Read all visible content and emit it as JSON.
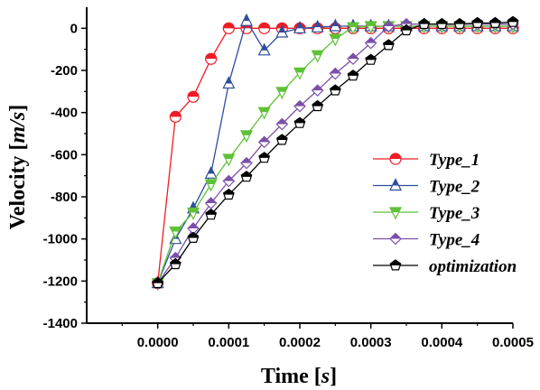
{
  "chart_data": {
    "type": "line",
    "xlabel": {
      "main": "Time ",
      "unit": "s"
    },
    "ylabel": {
      "main": "Velocity ",
      "unit": "m/s"
    },
    "xlim": [
      -0.0001,
      0.0005
    ],
    "ylim": [
      -1400,
      100
    ],
    "xticks": [
      0.0,
      0.0001,
      0.0002,
      0.0003,
      0.0004,
      0.0005
    ],
    "xtick_labels": [
      "0.0000",
      "0.0001",
      "0.0002",
      "0.0003",
      "0.0004",
      "0.0005"
    ],
    "yticks": [
      -1400,
      -1200,
      -1000,
      -800,
      -600,
      -400,
      -200,
      0
    ],
    "ytick_labels": [
      "-1400",
      "-1200",
      "-1000",
      "-800",
      "-600",
      "-400",
      "-200",
      "0"
    ],
    "x": [
      0.0,
      2.5e-05,
      5e-05,
      7.5e-05,
      0.0001,
      0.000125,
      0.00015,
      0.000175,
      0.0002,
      0.000225,
      0.00025,
      0.000275,
      0.0003,
      0.000325,
      0.00035,
      0.000375,
      0.0004,
      0.000425,
      0.00045,
      0.000475,
      0.0005
    ],
    "legend_position": "center-right",
    "grid": false,
    "series": [
      {
        "name": "Type_1",
        "color": "#ee1c25",
        "marker": "circle",
        "values": [
          -1210,
          -420,
          -325,
          -145,
          0,
          0,
          0,
          0,
          0,
          0,
          0,
          0,
          0,
          0,
          0,
          0,
          0,
          0,
          0,
          0,
          0
        ]
      },
      {
        "name": "Type_2",
        "color": "#2e4d9b",
        "marker": "triangle-up",
        "values": [
          -1210,
          -1000,
          -855,
          -690,
          -262,
          35,
          -105,
          -20,
          0,
          5,
          10,
          10,
          10,
          10,
          10,
          10,
          10,
          10,
          10,
          10,
          10
        ]
      },
      {
        "name": "Type_3",
        "color": "#5ec137",
        "marker": "triangle-down",
        "values": [
          -1210,
          -965,
          -875,
          -740,
          -620,
          -508,
          -398,
          -302,
          -210,
          -128,
          -50,
          5,
          10,
          10,
          10,
          10,
          10,
          10,
          10,
          10,
          10
        ]
      },
      {
        "name": "Type_4",
        "color": "#7b4fa8",
        "marker": "diamond",
        "values": [
          -1210,
          -1090,
          -950,
          -830,
          -725,
          -640,
          -540,
          -455,
          -370,
          -295,
          -215,
          -145,
          -70,
          10,
          20,
          20,
          20,
          20,
          20,
          20,
          20
        ]
      },
      {
        "name": "optimization",
        "color": "#000000",
        "marker": "pentagon",
        "values": [
          -1210,
          -1120,
          -995,
          -885,
          -790,
          -705,
          -615,
          -530,
          -450,
          -370,
          -295,
          -225,
          -150,
          -80,
          -10,
          20,
          20,
          20,
          25,
          25,
          30
        ]
      }
    ]
  }
}
